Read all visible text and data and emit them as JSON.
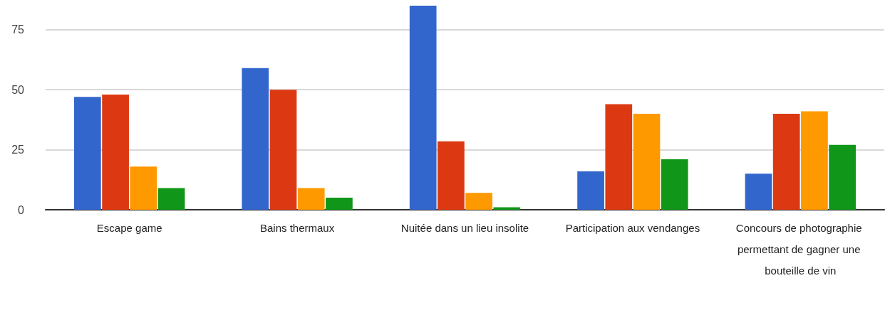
{
  "chart_data": {
    "type": "bar",
    "categories": [
      "Escape game",
      "Bains thermaux",
      "Nuitée dans un lieu insolite",
      "Participation aux vendanges",
      "Concours de photographie permettant de gagner une bouteille de vin"
    ],
    "series": [
      {
        "color": "#3366cc",
        "values": [
          47,
          59,
          85,
          16,
          15
        ]
      },
      {
        "color": "#dc3912",
        "values": [
          48,
          50,
          28.5,
          44,
          40
        ]
      },
      {
        "color": "#ff9900",
        "values": [
          18,
          9,
          7,
          40,
          41
        ]
      },
      {
        "color": "#109618",
        "values": [
          9,
          5,
          1,
          21,
          27
        ]
      }
    ],
    "ylim": [
      0,
      85
    ],
    "yticks": [
      0,
      25,
      50,
      75
    ],
    "grid": "y"
  }
}
